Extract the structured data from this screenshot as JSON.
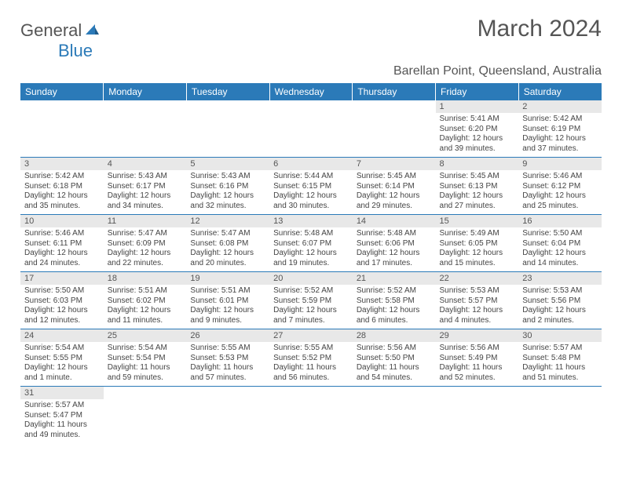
{
  "logo": {
    "textA": "General",
    "textB": "Blue"
  },
  "title": "March 2024",
  "location": "Barellan Point, Queensland, Australia",
  "colors": {
    "headerBg": "#2b7ab8",
    "headerText": "#ffffff",
    "dayNumBg": "#e8e8e8",
    "bodyText": "#444444",
    "rowBorder": "#2b7ab8"
  },
  "dayHeaders": [
    "Sunday",
    "Monday",
    "Tuesday",
    "Wednesday",
    "Thursday",
    "Friday",
    "Saturday"
  ],
  "weeks": [
    [
      {
        "n": "",
        "t": ""
      },
      {
        "n": "",
        "t": ""
      },
      {
        "n": "",
        "t": ""
      },
      {
        "n": "",
        "t": ""
      },
      {
        "n": "",
        "t": ""
      },
      {
        "n": "1",
        "t": "Sunrise: 5:41 AM\nSunset: 6:20 PM\nDaylight: 12 hours and 39 minutes."
      },
      {
        "n": "2",
        "t": "Sunrise: 5:42 AM\nSunset: 6:19 PM\nDaylight: 12 hours and 37 minutes."
      }
    ],
    [
      {
        "n": "3",
        "t": "Sunrise: 5:42 AM\nSunset: 6:18 PM\nDaylight: 12 hours and 35 minutes."
      },
      {
        "n": "4",
        "t": "Sunrise: 5:43 AM\nSunset: 6:17 PM\nDaylight: 12 hours and 34 minutes."
      },
      {
        "n": "5",
        "t": "Sunrise: 5:43 AM\nSunset: 6:16 PM\nDaylight: 12 hours and 32 minutes."
      },
      {
        "n": "6",
        "t": "Sunrise: 5:44 AM\nSunset: 6:15 PM\nDaylight: 12 hours and 30 minutes."
      },
      {
        "n": "7",
        "t": "Sunrise: 5:45 AM\nSunset: 6:14 PM\nDaylight: 12 hours and 29 minutes."
      },
      {
        "n": "8",
        "t": "Sunrise: 5:45 AM\nSunset: 6:13 PM\nDaylight: 12 hours and 27 minutes."
      },
      {
        "n": "9",
        "t": "Sunrise: 5:46 AM\nSunset: 6:12 PM\nDaylight: 12 hours and 25 minutes."
      }
    ],
    [
      {
        "n": "10",
        "t": "Sunrise: 5:46 AM\nSunset: 6:11 PM\nDaylight: 12 hours and 24 minutes."
      },
      {
        "n": "11",
        "t": "Sunrise: 5:47 AM\nSunset: 6:09 PM\nDaylight: 12 hours and 22 minutes."
      },
      {
        "n": "12",
        "t": "Sunrise: 5:47 AM\nSunset: 6:08 PM\nDaylight: 12 hours and 20 minutes."
      },
      {
        "n": "13",
        "t": "Sunrise: 5:48 AM\nSunset: 6:07 PM\nDaylight: 12 hours and 19 minutes."
      },
      {
        "n": "14",
        "t": "Sunrise: 5:48 AM\nSunset: 6:06 PM\nDaylight: 12 hours and 17 minutes."
      },
      {
        "n": "15",
        "t": "Sunrise: 5:49 AM\nSunset: 6:05 PM\nDaylight: 12 hours and 15 minutes."
      },
      {
        "n": "16",
        "t": "Sunrise: 5:50 AM\nSunset: 6:04 PM\nDaylight: 12 hours and 14 minutes."
      }
    ],
    [
      {
        "n": "17",
        "t": "Sunrise: 5:50 AM\nSunset: 6:03 PM\nDaylight: 12 hours and 12 minutes."
      },
      {
        "n": "18",
        "t": "Sunrise: 5:51 AM\nSunset: 6:02 PM\nDaylight: 12 hours and 11 minutes."
      },
      {
        "n": "19",
        "t": "Sunrise: 5:51 AM\nSunset: 6:01 PM\nDaylight: 12 hours and 9 minutes."
      },
      {
        "n": "20",
        "t": "Sunrise: 5:52 AM\nSunset: 5:59 PM\nDaylight: 12 hours and 7 minutes."
      },
      {
        "n": "21",
        "t": "Sunrise: 5:52 AM\nSunset: 5:58 PM\nDaylight: 12 hours and 6 minutes."
      },
      {
        "n": "22",
        "t": "Sunrise: 5:53 AM\nSunset: 5:57 PM\nDaylight: 12 hours and 4 minutes."
      },
      {
        "n": "23",
        "t": "Sunrise: 5:53 AM\nSunset: 5:56 PM\nDaylight: 12 hours and 2 minutes."
      }
    ],
    [
      {
        "n": "24",
        "t": "Sunrise: 5:54 AM\nSunset: 5:55 PM\nDaylight: 12 hours and 1 minute."
      },
      {
        "n": "25",
        "t": "Sunrise: 5:54 AM\nSunset: 5:54 PM\nDaylight: 11 hours and 59 minutes."
      },
      {
        "n": "26",
        "t": "Sunrise: 5:55 AM\nSunset: 5:53 PM\nDaylight: 11 hours and 57 minutes."
      },
      {
        "n": "27",
        "t": "Sunrise: 5:55 AM\nSunset: 5:52 PM\nDaylight: 11 hours and 56 minutes."
      },
      {
        "n": "28",
        "t": "Sunrise: 5:56 AM\nSunset: 5:50 PM\nDaylight: 11 hours and 54 minutes."
      },
      {
        "n": "29",
        "t": "Sunrise: 5:56 AM\nSunset: 5:49 PM\nDaylight: 11 hours and 52 minutes."
      },
      {
        "n": "30",
        "t": "Sunrise: 5:57 AM\nSunset: 5:48 PM\nDaylight: 11 hours and 51 minutes."
      }
    ],
    [
      {
        "n": "31",
        "t": "Sunrise: 5:57 AM\nSunset: 5:47 PM\nDaylight: 11 hours and 49 minutes."
      },
      {
        "n": "",
        "t": ""
      },
      {
        "n": "",
        "t": ""
      },
      {
        "n": "",
        "t": ""
      },
      {
        "n": "",
        "t": ""
      },
      {
        "n": "",
        "t": ""
      },
      {
        "n": "",
        "t": ""
      }
    ]
  ]
}
